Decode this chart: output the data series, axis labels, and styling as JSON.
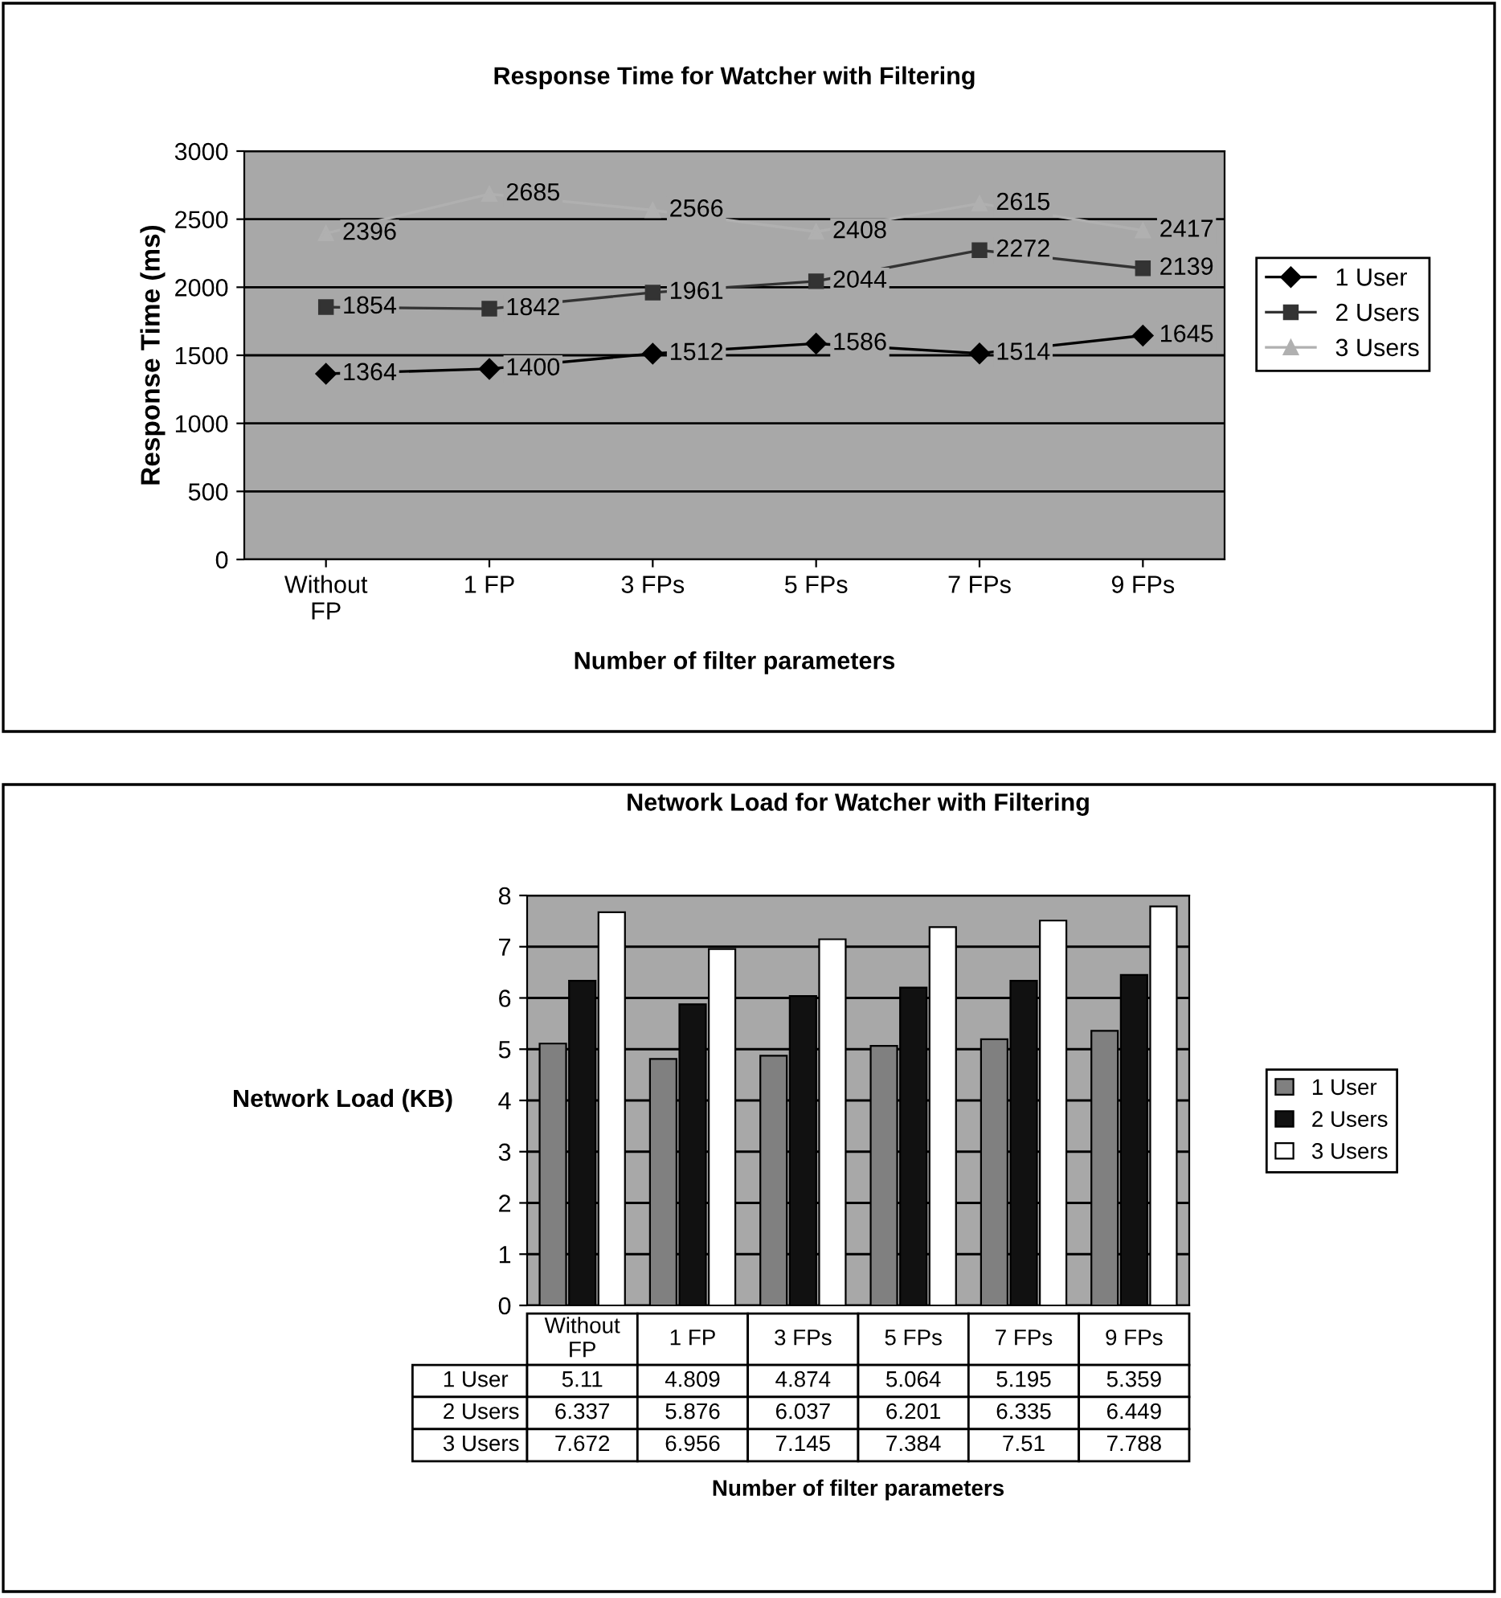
{
  "chart_data": [
    {
      "type": "line",
      "title": "Response Time for Watcher with Filtering",
      "xlabel": "Number of filter parameters",
      "ylabel": "Response Time (ms)",
      "categories": [
        "Without FP",
        "1 FP",
        "3 FPs",
        "5 FPs",
        "7 FPs",
        "9 FPs"
      ],
      "series": [
        {
          "name": "1 User",
          "color": "#000000",
          "marker": "diamond",
          "values": [
            1364,
            1400,
            1512,
            1586,
            1514,
            1645
          ]
        },
        {
          "name": "2 Users",
          "color": "#333333",
          "marker": "square",
          "values": [
            1854,
            1842,
            1961,
            2044,
            2272,
            2139
          ]
        },
        {
          "name": "3 Users",
          "color": "#b0b0b0",
          "marker": "triangle",
          "values": [
            2396,
            2685,
            2566,
            2408,
            2615,
            2417
          ]
        }
      ],
      "ylim": [
        0,
        3000
      ],
      "yticks": [
        0,
        500,
        1000,
        1500,
        2000,
        2500,
        3000
      ],
      "grid": "y",
      "legend": "right",
      "data_labels": true,
      "line_style": "solid"
    },
    {
      "type": "bar",
      "title": "Network Load for Watcher with Filtering",
      "xlabel": "Number of filter parameters",
      "ylabel": "Network Load (KB)",
      "categories": [
        "Without FP",
        "1 FP",
        "3 FPs",
        "5 FPs",
        "7 FPs",
        "9 FPs"
      ],
      "series": [
        {
          "name": "1 User",
          "color": "#808080",
          "values": [
            5.11,
            4.809,
            4.874,
            5.064,
            5.195,
            5.359
          ]
        },
        {
          "name": "2 Users",
          "color": "#111111",
          "values": [
            6.337,
            5.876,
            6.037,
            6.201,
            6.335,
            6.449
          ]
        },
        {
          "name": "3 Users",
          "color": "#ffffff",
          "values": [
            7.672,
            6.956,
            7.145,
            7.384,
            7.51,
            7.788
          ]
        }
      ],
      "ylim": [
        0,
        8
      ],
      "yticks": [
        0,
        1,
        2,
        3,
        4,
        5,
        6,
        7,
        8
      ],
      "grid": "y",
      "legend": "right",
      "data_labels": true
    }
  ]
}
